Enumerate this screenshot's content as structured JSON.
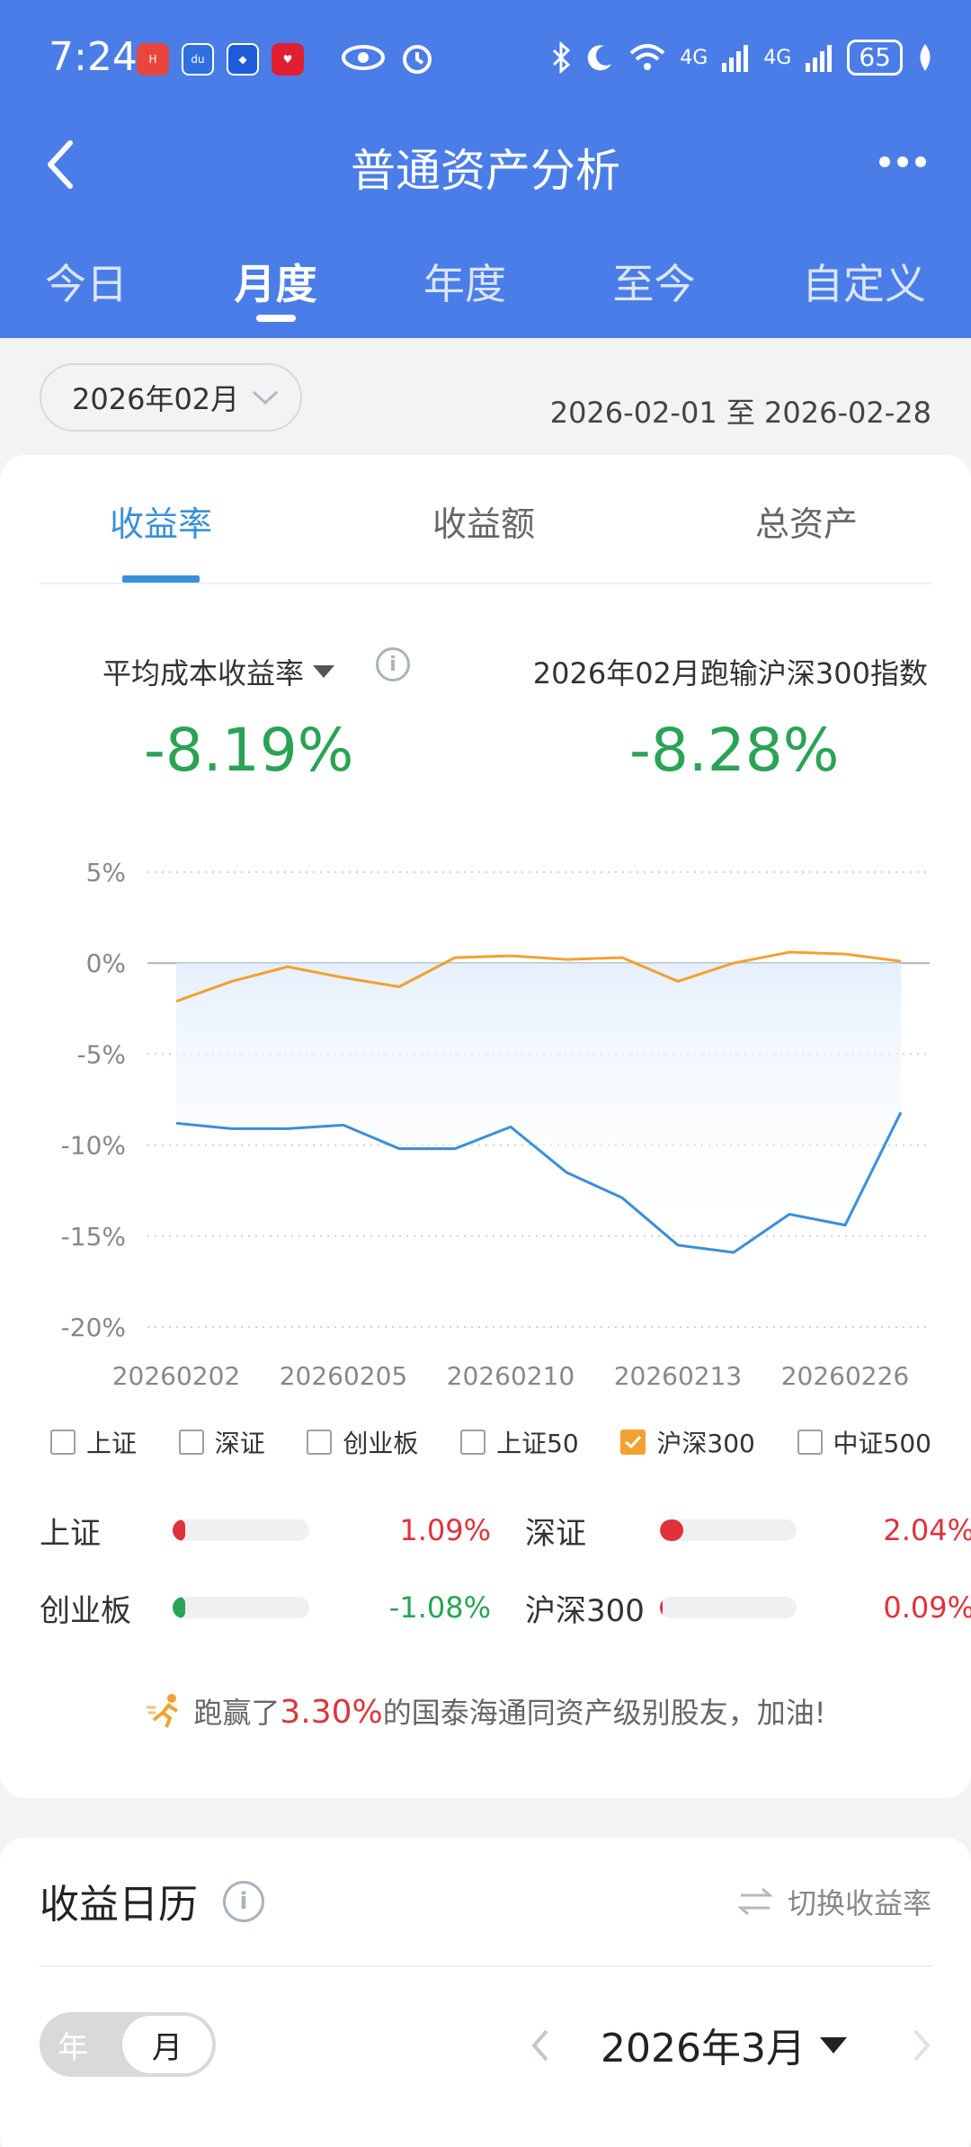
{
  "status_bar": {
    "time": "7:24",
    "battery": "65",
    "network": "4G"
  },
  "nav": {
    "title": "普通资产分析"
  },
  "period_tabs": [
    "今日",
    "月度",
    "年度",
    "至今",
    "自定义"
  ],
  "active_period": "月度",
  "filter": {
    "month": "2026年02月",
    "date_range": "2026-02-01 至 2026-02-28"
  },
  "metric_tabs": [
    "收益率",
    "收益额",
    "总资产"
  ],
  "active_metric": "收益率",
  "kpi": {
    "left_label": "平均成本收益率",
    "left_value": "-8.19%",
    "right_label": "2026年02月跑输沪深300指数",
    "right_value": "-8.28%"
  },
  "chart_data": {
    "type": "line",
    "y_ticks": [
      "5%",
      "0%",
      "-5%",
      "-10%",
      "-15%",
      "-20%"
    ],
    "ylim": [
      -20,
      5
    ],
    "x_labels": [
      "20260202",
      "20260205",
      "20260210",
      "20260213",
      "20260226"
    ],
    "series": [
      {
        "color": "#3b8fd8",
        "values": [
          -8.8,
          -9.1,
          -9.1,
          -8.9,
          -10.2,
          -10.2,
          -9.0,
          -11.5,
          -12.9,
          -15.5,
          -15.9,
          -13.8,
          -14.4,
          -8.2
        ]
      },
      {
        "color": "#f2a131",
        "values": [
          -2.1,
          -1.0,
          -0.2,
          -0.8,
          -1.3,
          0.3,
          0.4,
          0.2,
          0.3,
          -1.0,
          0.0,
          0.6,
          0.5,
          0.1
        ]
      }
    ]
  },
  "index_checks": [
    {
      "label": "上证",
      "checked": false
    },
    {
      "label": "深证",
      "checked": false
    },
    {
      "label": "创业板",
      "checked": false
    },
    {
      "label": "上证50",
      "checked": false
    },
    {
      "label": "沪深300",
      "checked": true
    },
    {
      "label": "中证500",
      "checked": false
    }
  ],
  "index_rows": [
    [
      {
        "name": "上证",
        "value": "1.09%",
        "fill": 0.09,
        "color": "#e0323a"
      },
      {
        "name": "深证",
        "value": "2.04%",
        "fill": 0.17,
        "color": "#e0323a"
      }
    ],
    [
      {
        "name": "创业板",
        "value": "-1.08%",
        "fill": 0.09,
        "color": "#2aa355"
      },
      {
        "name": "沪深300",
        "value": "0.09%",
        "fill": 0.02,
        "color": "#e0323a"
      }
    ]
  ],
  "encourage": {
    "prefix": "跑赢了",
    "value": "3.30%",
    "suffix": "的国泰海通同资产级别股友，加油!"
  },
  "calendar": {
    "title": "收益日历",
    "switch_label": "切换收益率",
    "seg_year": "年",
    "seg_month": "月",
    "current_month": "2026年3月"
  }
}
